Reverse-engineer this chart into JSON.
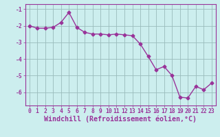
{
  "x": [
    0,
    1,
    2,
    3,
    4,
    5,
    6,
    7,
    8,
    9,
    10,
    11,
    12,
    13,
    14,
    15,
    16,
    17,
    18,
    19,
    20,
    21,
    22,
    23
  ],
  "y": [
    -2.0,
    -2.15,
    -2.15,
    -2.1,
    -1.8,
    -1.2,
    -2.1,
    -2.4,
    -2.5,
    -2.5,
    -2.55,
    -2.5,
    -2.55,
    -2.6,
    -3.1,
    -3.85,
    -4.65,
    -4.45,
    -5.0,
    -6.3,
    -6.35,
    -5.65,
    -5.85,
    -5.45
  ],
  "line_color": "#993399",
  "marker": "D",
  "marker_size": 2.5,
  "bg_color": "#cceeee",
  "grid_color": "#99bbbb",
  "ylim": [
    -6.8,
    -0.7
  ],
  "xlim": [
    -0.5,
    23.5
  ],
  "yticks": [
    -6,
    -5,
    -4,
    -3,
    -2,
    -1
  ],
  "xticks": [
    0,
    1,
    2,
    3,
    4,
    5,
    6,
    7,
    8,
    9,
    10,
    11,
    12,
    13,
    14,
    15,
    16,
    17,
    18,
    19,
    20,
    21,
    22,
    23
  ],
  "tick_label_color": "#993399",
  "tick_label_fontsize": 5.8,
  "xlabel": "Windchill (Refroidissement éolien,°C)",
  "xlabel_fontsize": 7.2,
  "line_width": 1.0
}
